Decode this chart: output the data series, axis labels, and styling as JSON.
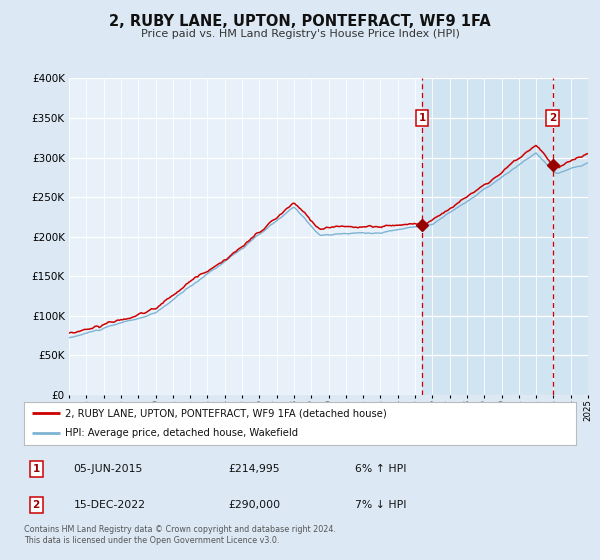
{
  "title": "2, RUBY LANE, UPTON, PONTEFRACT, WF9 1FA",
  "subtitle": "Price paid vs. HM Land Registry's House Price Index (HPI)",
  "legend_line1": "2, RUBY LANE, UPTON, PONTEFRACT, WF9 1FA (detached house)",
  "legend_line2": "HPI: Average price, detached house, Wakefield",
  "sale1_date": "05-JUN-2015",
  "sale1_price": "£214,995",
  "sale1_hpi": "6% ↑ HPI",
  "sale1_year": 2015.42,
  "sale1_value": 214995,
  "sale2_date": "15-DEC-2022",
  "sale2_price": "£290,000",
  "sale2_hpi": "7% ↓ HPI",
  "sale2_year": 2022.96,
  "sale2_value": 290000,
  "xmin": 1995,
  "xmax": 2025,
  "ymin": 0,
  "ymax": 400000,
  "yticks": [
    0,
    50000,
    100000,
    150000,
    200000,
    250000,
    300000,
    350000,
    400000
  ],
  "red_color": "#cc0000",
  "blue_color": "#7fb3d3",
  "bg_color": "#dce9f5",
  "plot_bg": "#e8f1fa",
  "shade_color": "#c8dff0",
  "footer_text": "Contains HM Land Registry data © Crown copyright and database right 2024.\nThis data is licensed under the Open Government Licence v3.0."
}
